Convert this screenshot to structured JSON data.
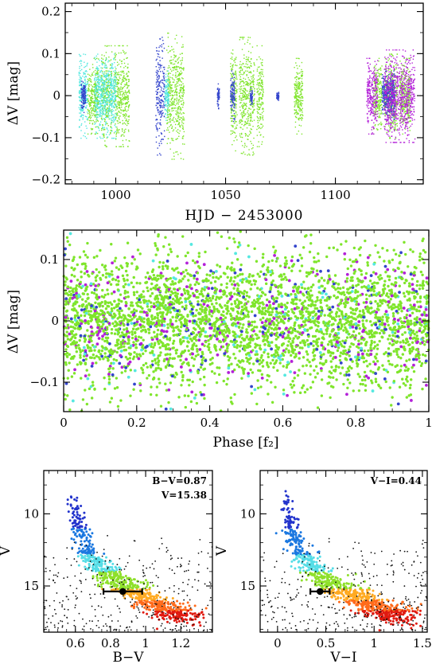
{
  "chart_data": [
    {
      "id": "lightcurve",
      "type": "scatter",
      "title": "",
      "xlabel": "HJD − 2453000",
      "ylabel": "ΔV [mag]",
      "xlim": [
        977,
        1140
      ],
      "ylim": [
        0.22,
        -0.21
      ],
      "y_inverted": true,
      "xticks": [
        1000,
        1050,
        1100
      ],
      "yticks": [
        -0.2,
        -0.1,
        0,
        0.1,
        0.2
      ],
      "ytick_labels": [
        "−0.2",
        "−0.1",
        "0",
        "0.1",
        "0.2"
      ],
      "series": [
        {
          "color": "#7fe52b",
          "segments": [
            [
              987,
              992,
              0.09
            ],
            [
              993,
              998,
              0.12
            ],
            [
              999,
              1006,
              0.12
            ],
            [
              1023,
              1031,
              0.15
            ],
            [
              1052,
              1055,
              0.13
            ],
            [
              1056,
              1063,
              0.14
            ],
            [
              1064,
              1067,
              0.12
            ],
            [
              1081,
              1085,
              0.09
            ],
            [
              1117,
              1121,
              0.09
            ],
            [
              1122,
              1128,
              0.1
            ],
            [
              1129,
              1134,
              0.09
            ]
          ]
        },
        {
          "color": "#55e8e0",
          "segments": [
            [
              983,
              987,
              0.1
            ],
            [
              990,
              1000,
              0.1
            ],
            [
              1022,
              1024,
              0.06
            ]
          ]
        },
        {
          "color": "#3344cc",
          "segments": [
            [
              984,
              986,
              0.04
            ],
            [
              1018,
              1022,
              0.14
            ],
            [
              1046,
              1047,
              0.03
            ],
            [
              1052,
              1054,
              0.06
            ],
            [
              1061,
              1062,
              0.02
            ],
            [
              1073,
              1074,
              0.01
            ],
            [
              1121,
              1127,
              0.06
            ]
          ]
        },
        {
          "color": "#b321d8",
          "segments": [
            [
              1114,
              1119,
              0.09
            ],
            [
              1122,
              1136,
              0.11
            ]
          ]
        }
      ]
    },
    {
      "id": "phase",
      "type": "scatter",
      "title": "",
      "xlabel": "Phase [f₂]",
      "ylabel": "ΔV [mag]",
      "xlim": [
        0,
        1
      ],
      "ylim": [
        0.148,
        -0.148
      ],
      "y_inverted": true,
      "xticks": [
        0,
        0.2,
        0.4,
        0.6,
        0.8,
        1
      ],
      "xtick_labels": [
        "0",
        "0.2",
        "0.4",
        "0.6",
        "0.8",
        "1"
      ],
      "yticks": [
        -0.1,
        0,
        0.1
      ],
      "ytick_labels": [
        "−0.1",
        "0",
        "0.1"
      ],
      "point_colors": [
        "#7fe52b",
        "#b321d8",
        "#3344cc",
        "#55e8e0"
      ],
      "point_weights": [
        0.83,
        0.08,
        0.05,
        0.04
      ],
      "y_scatter_mag": 0.055
    },
    {
      "id": "cmd_bv",
      "type": "scatter",
      "title": "",
      "xlabel": "B−V",
      "ylabel": "V",
      "xlim": [
        0.42,
        1.38
      ],
      "ylim": [
        7.0,
        18.2
      ],
      "y_inverted": true,
      "xticks": [
        0.6,
        0.8,
        1,
        1.2
      ],
      "xtick_labels": [
        "0.6",
        "0.8",
        "1",
        "1.2"
      ],
      "yticks": [
        10,
        15
      ],
      "annotations": [
        "B−V=0.87",
        "V=15.38"
      ],
      "marker": {
        "x": 0.87,
        "y": 15.38,
        "xerr": 0.11
      },
      "sequence": {
        "x": [
          0.58,
          0.62,
          0.66,
          0.72,
          0.8,
          0.88,
          0.96,
          1.05,
          1.15,
          1.25
        ],
        "y": [
          8.8,
          10.8,
          12.4,
          13.6,
          14.4,
          15.0,
          15.6,
          16.2,
          16.8,
          17.2
        ]
      }
    },
    {
      "id": "cmd_vi",
      "type": "scatter",
      "title": "",
      "xlabel": "V−I",
      "ylabel": "V",
      "xlim": [
        -0.18,
        1.55
      ],
      "ylim": [
        7.0,
        18.2
      ],
      "y_inverted": true,
      "xticks": [
        0,
        0.5,
        1,
        1.5
      ],
      "xtick_labels": [
        "0",
        "0.5",
        "1",
        "1.5"
      ],
      "yticks": [
        10,
        15
      ],
      "annotations": [
        "V−I=0.44"
      ],
      "marker": {
        "x": 0.44,
        "y": 15.38,
        "xerr": 0.1
      },
      "sequence": {
        "x": [
          0.08,
          0.13,
          0.2,
          0.32,
          0.48,
          0.62,
          0.78,
          0.95,
          1.12,
          1.32
        ],
        "y": [
          8.8,
          10.8,
          12.4,
          13.6,
          14.4,
          15.0,
          15.6,
          16.2,
          16.8,
          17.2
        ]
      }
    }
  ]
}
